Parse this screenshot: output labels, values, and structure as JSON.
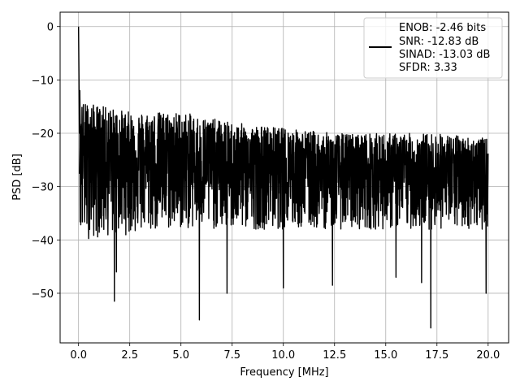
{
  "chart_data": {
    "type": "line",
    "xlabel": "Frequency [MHz]",
    "ylabel": "PSD [dB]",
    "xlim": [
      -0.9,
      21.0
    ],
    "ylim": [
      -59.3,
      2.7
    ],
    "xticks": [
      0.0,
      2.5,
      5.0,
      7.5,
      10.0,
      12.5,
      15.0,
      17.5,
      20.0
    ],
    "xtick_labels": [
      "0.0",
      "2.5",
      "5.0",
      "7.5",
      "10.0",
      "12.5",
      "15.0",
      "17.5",
      "20.0"
    ],
    "yticks": [
      0,
      -10,
      -20,
      -30,
      -40,
      -50
    ],
    "ytick_labels": [
      "0",
      "−10",
      "−20",
      "−30",
      "−40",
      "−50"
    ],
    "grid": true,
    "legend_position": "top-right",
    "series": [
      {
        "name": "ENOB: -2.46 bits\nSNR: -12.83 dB\nSINAD: -13.03 dB\nSFDR: 3.33",
        "legend_lines": [
          "ENOB: -2.46 bits",
          "SNR: -12.83 dB",
          "SINAD: -13.03 dB",
          "SFDR: 3.33"
        ],
        "color": "#000000",
        "x_start": 0.0,
        "x_end": 20.0,
        "peak": {
          "x": 0.0,
          "y": 0.0
        },
        "noise_floor_envelope": {
          "x": [
            0.0,
            2.5,
            5.0,
            7.5,
            10.0,
            12.5,
            15.0,
            17.5,
            20.0
          ],
          "upper": [
            -14,
            -16,
            -16,
            -18,
            -19,
            -20,
            -20,
            -20,
            -21
          ],
          "median": [
            -24,
            -25,
            -26,
            -27,
            -27,
            -28,
            -28,
            -28,
            -28
          ],
          "lower": [
            -40,
            -39,
            -38,
            -38,
            -38,
            -38,
            -38,
            -38,
            -38
          ]
        },
        "notable_dips": [
          {
            "x": 1.75,
            "y": -51.5
          },
          {
            "x": 1.85,
            "y": -46.0
          },
          {
            "x": 5.9,
            "y": -55.0
          },
          {
            "x": 7.25,
            "y": -50.0
          },
          {
            "x": 10.0,
            "y": -49.0
          },
          {
            "x": 12.4,
            "y": -48.5
          },
          {
            "x": 15.5,
            "y": -47.0
          },
          {
            "x": 16.75,
            "y": -48.0
          },
          {
            "x": 17.2,
            "y": -56.5
          },
          {
            "x": 19.9,
            "y": -50.0
          }
        ]
      }
    ]
  }
}
